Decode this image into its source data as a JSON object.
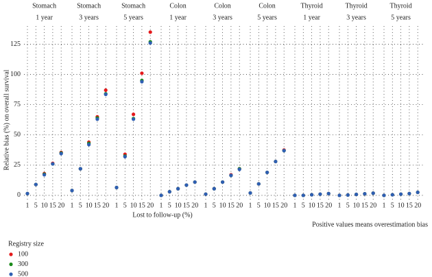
{
  "chart_data": {
    "type": "scatter",
    "y_label": "Relative bias (%) on overall survival",
    "x_label": "Lost to follow-up (%)",
    "note": "Positive values means overestimation bias",
    "legend_title": "Registry size",
    "categories": [
      "1",
      "5",
      "10",
      "15",
      "20"
    ],
    "series": [
      {
        "name": "100",
        "color": "#e41a1c"
      },
      {
        "name": "300",
        "color": "#1a8a1a"
      },
      {
        "name": "500",
        "color": "#2f5fb3"
      }
    ],
    "panels": [
      {
        "title": "Stomach",
        "subtitle": "1 year",
        "values": [
          [
            1.5,
            9,
            18,
            26.5,
            35.5
          ],
          [
            1.5,
            9,
            17.5,
            26,
            35
          ],
          [
            1.5,
            9,
            17,
            26,
            34.5
          ]
        ]
      },
      {
        "title": "Stomach",
        "subtitle": "3 years",
        "values": [
          [
            4,
            22,
            44,
            65,
            87
          ],
          [
            4,
            22,
            43,
            64,
            84
          ],
          [
            4,
            22,
            42,
            63,
            83.5
          ]
        ]
      },
      {
        "title": "Stomach",
        "subtitle": "5 years",
        "values": [
          [
            6.5,
            34,
            67,
            101,
            135
          ],
          [
            6.5,
            32.5,
            63.5,
            95,
            127
          ],
          [
            6.5,
            32,
            63,
            94,
            126
          ]
        ]
      },
      {
        "title": "Colon",
        "subtitle": "1 year",
        "values": [
          [
            0,
            3,
            5.5,
            8.5,
            11
          ],
          [
            0,
            3,
            5.5,
            8.5,
            11
          ],
          [
            0,
            3,
            5.5,
            8.5,
            11
          ]
        ]
      },
      {
        "title": "Colon",
        "subtitle": "3 years",
        "values": [
          [
            1,
            5.5,
            11,
            17,
            22
          ],
          [
            1,
            5.5,
            11,
            16.5,
            22
          ],
          [
            1,
            5.5,
            11,
            16.5,
            21.5
          ]
        ]
      },
      {
        "title": "Colon",
        "subtitle": "5 years",
        "values": [
          [
            2,
            9.5,
            19,
            28,
            37.5
          ],
          [
            2,
            9.5,
            19,
            28,
            37
          ],
          [
            2,
            9.5,
            19,
            28,
            37
          ]
        ]
      },
      {
        "title": "Thyroid",
        "subtitle": "1 year",
        "values": [
          [
            0,
            0,
            0.5,
            1,
            1.5
          ],
          [
            0,
            0,
            0.5,
            1,
            1.5
          ],
          [
            0,
            0,
            0.5,
            1,
            1.5
          ]
        ]
      },
      {
        "title": "Thyroid",
        "subtitle": "3 years",
        "values": [
          [
            0,
            0.3,
            0.8,
            1.3,
            1.8
          ],
          [
            0,
            0.3,
            0.8,
            1.3,
            1.8
          ],
          [
            0,
            0.3,
            0.8,
            1.3,
            1.8
          ]
        ]
      },
      {
        "title": "Thyroid",
        "subtitle": "5 years",
        "values": [
          [
            0,
            0.5,
            1,
            1.5,
            2.5
          ],
          [
            0,
            0.5,
            1,
            1.5,
            2.5
          ],
          [
            0,
            0.5,
            1,
            1.5,
            2.5
          ]
        ]
      }
    ],
    "ylim": [
      -4,
      140
    ],
    "yticks": [
      0,
      25,
      50,
      75,
      100,
      125
    ],
    "grid": true
  }
}
